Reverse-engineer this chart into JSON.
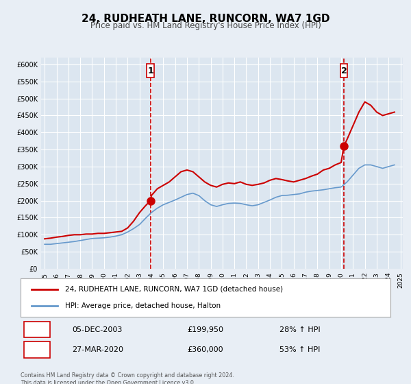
{
  "title": "24, RUDHEATH LANE, RUNCORN, WA7 1GD",
  "subtitle": "Price paid vs. HM Land Registry's House Price Index (HPI)",
  "legend_line1": "24, RUDHEATH LANE, RUNCORN, WA7 1GD (detached house)",
  "legend_line2": "HPI: Average price, detached house, Halton",
  "marker1_date": "05-DEC-2003",
  "marker1_price": 199950,
  "marker1_label": "28% ↑ HPI",
  "marker1_x": 2003.92,
  "marker2_date": "27-MAR-2020",
  "marker2_price": 360000,
  "marker2_label": "53% ↑ HPI",
  "marker2_x": 2020.23,
  "price_color": "#cc0000",
  "hpi_color": "#6699cc",
  "background_color": "#e8eef5",
  "plot_bg_color": "#dce6f0",
  "grid_color": "#ffffff",
  "ylim": [
    0,
    620000
  ],
  "xlim_start": 1995,
  "xlim_end": 2025,
  "footnote": "Contains HM Land Registry data © Crown copyright and database right 2024.\nThis data is licensed under the Open Government Licence v3.0.",
  "price_series_x": [
    1995.0,
    1995.5,
    1996.0,
    1996.5,
    1997.0,
    1997.5,
    1998.0,
    1998.5,
    1999.0,
    1999.5,
    2000.0,
    2000.5,
    2001.0,
    2001.5,
    2002.0,
    2002.5,
    2003.0,
    2003.5,
    2003.92,
    2004.0,
    2004.5,
    2005.0,
    2005.5,
    2006.0,
    2006.5,
    2007.0,
    2007.5,
    2008.0,
    2008.5,
    2009.0,
    2009.5,
    2010.0,
    2010.5,
    2011.0,
    2011.5,
    2012.0,
    2012.5,
    2013.0,
    2013.5,
    2014.0,
    2014.5,
    2015.0,
    2015.5,
    2016.0,
    2016.5,
    2017.0,
    2017.5,
    2018.0,
    2018.5,
    2019.0,
    2019.5,
    2020.0,
    2020.23,
    2020.5,
    2021.0,
    2021.5,
    2022.0,
    2022.5,
    2023.0,
    2023.5,
    2024.0,
    2024.5
  ],
  "price_series_y": [
    88000,
    90000,
    93000,
    95000,
    98000,
    100000,
    100000,
    102000,
    102000,
    104000,
    104000,
    106000,
    108000,
    110000,
    120000,
    140000,
    165000,
    185000,
    199950,
    215000,
    235000,
    245000,
    255000,
    270000,
    285000,
    290000,
    285000,
    270000,
    255000,
    245000,
    240000,
    248000,
    252000,
    250000,
    255000,
    248000,
    245000,
    248000,
    252000,
    260000,
    265000,
    262000,
    258000,
    255000,
    260000,
    265000,
    272000,
    278000,
    290000,
    295000,
    305000,
    312000,
    360000,
    380000,
    420000,
    460000,
    490000,
    480000,
    460000,
    450000,
    455000,
    460000
  ],
  "hpi_series_x": [
    1995.0,
    1995.5,
    1996.0,
    1996.5,
    1997.0,
    1997.5,
    1998.0,
    1998.5,
    1999.0,
    1999.5,
    2000.0,
    2000.5,
    2001.0,
    2001.5,
    2002.0,
    2002.5,
    2003.0,
    2003.5,
    2004.0,
    2004.5,
    2005.0,
    2005.5,
    2006.0,
    2006.5,
    2007.0,
    2007.5,
    2008.0,
    2008.5,
    2009.0,
    2009.5,
    2010.0,
    2010.5,
    2011.0,
    2011.5,
    2012.0,
    2012.5,
    2013.0,
    2013.5,
    2014.0,
    2014.5,
    2015.0,
    2015.5,
    2016.0,
    2016.5,
    2017.0,
    2017.5,
    2018.0,
    2018.5,
    2019.0,
    2019.5,
    2020.0,
    2020.5,
    2021.0,
    2021.5,
    2022.0,
    2022.5,
    2023.0,
    2023.5,
    2024.0,
    2024.5
  ],
  "hpi_series_y": [
    72000,
    72000,
    74000,
    76000,
    78000,
    80000,
    83000,
    86000,
    89000,
    90000,
    91000,
    93000,
    96000,
    100000,
    108000,
    118000,
    130000,
    148000,
    165000,
    178000,
    188000,
    195000,
    202000,
    210000,
    218000,
    222000,
    215000,
    200000,
    188000,
    183000,
    188000,
    192000,
    193000,
    192000,
    188000,
    185000,
    188000,
    195000,
    202000,
    210000,
    215000,
    216000,
    218000,
    220000,
    225000,
    228000,
    230000,
    232000,
    235000,
    238000,
    240000,
    255000,
    275000,
    295000,
    305000,
    305000,
    300000,
    295000,
    300000,
    305000
  ]
}
